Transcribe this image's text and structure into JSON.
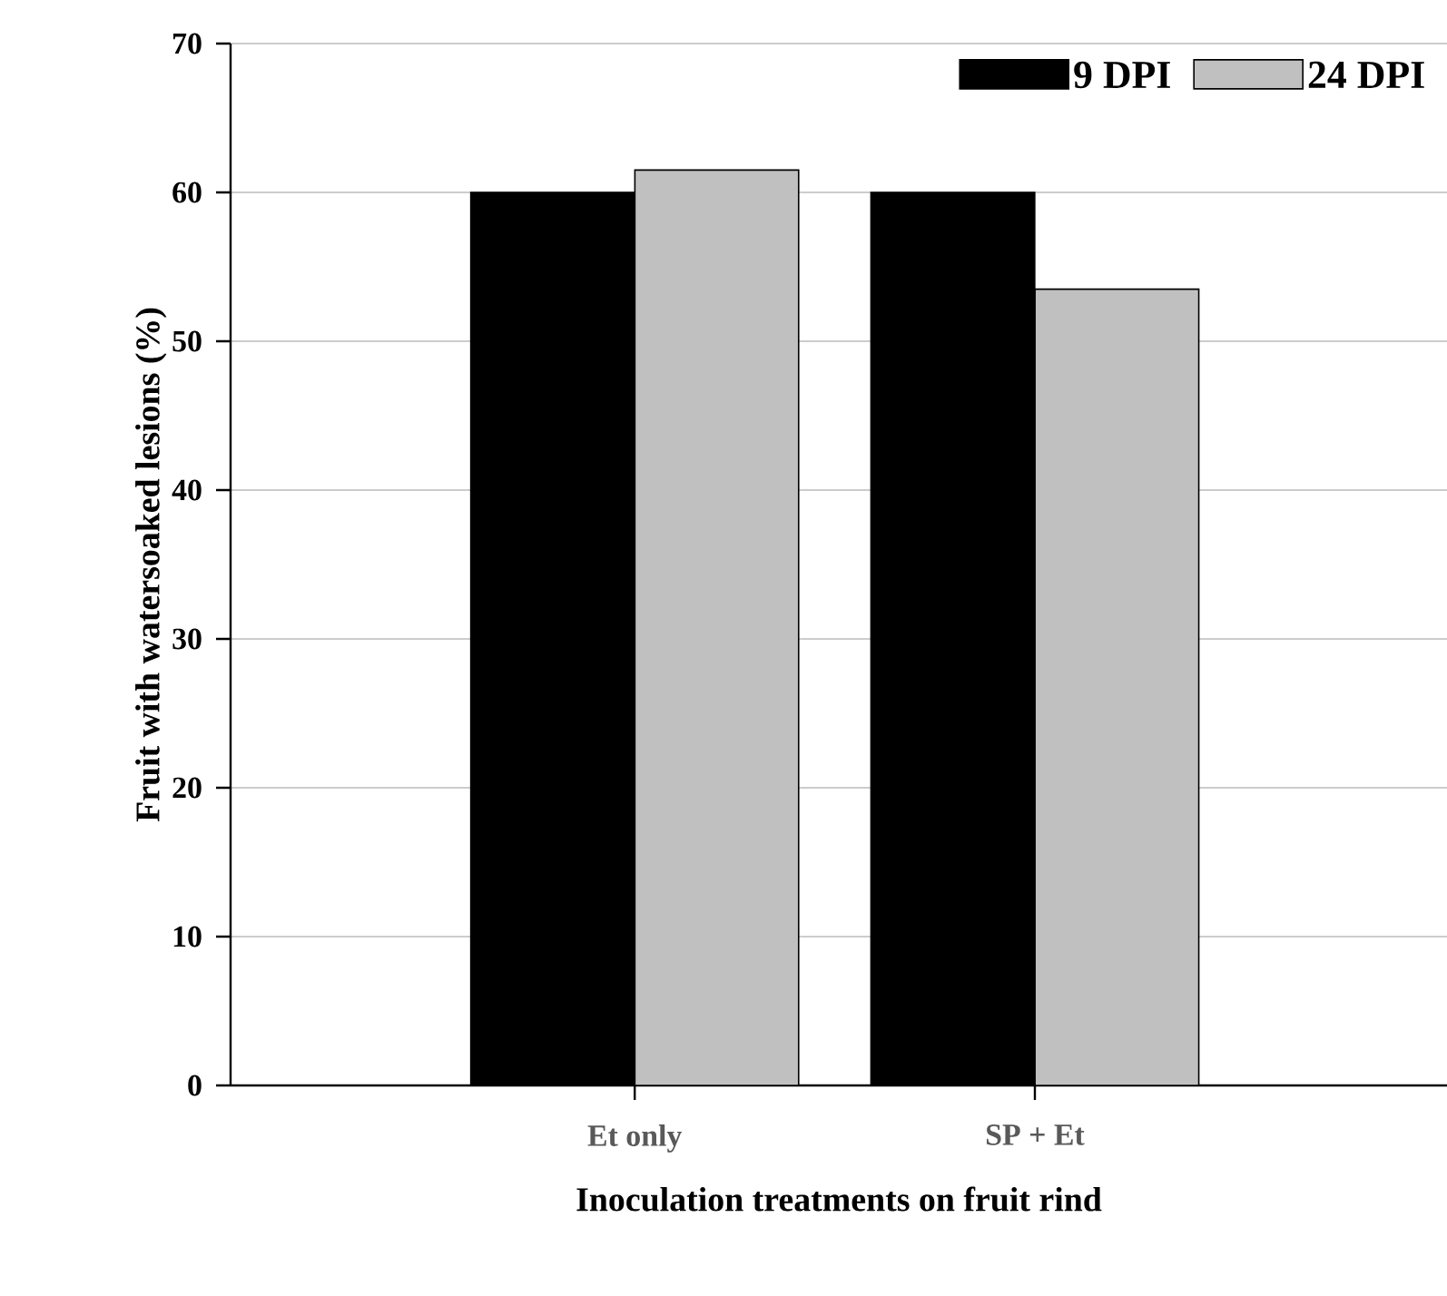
{
  "chart_data": {
    "type": "bar",
    "xlabel": "Inoculation treatments on fruit rind",
    "ylabel": "Fruit with watersoaked lesions (%)",
    "categories": [
      "Et only",
      "SP + Et"
    ],
    "series": [
      {
        "name": "9 DPI",
        "color": "#000000",
        "values": [
          60,
          60
        ]
      },
      {
        "name": "24 DPI",
        "color": "#c0c0c0",
        "values": [
          61.5,
          53.5
        ]
      }
    ],
    "ylim": [
      0,
      70
    ],
    "yticks": [
      0,
      10,
      20,
      30,
      40,
      50,
      60,
      70
    ],
    "grid": "y",
    "legend": "top right"
  }
}
